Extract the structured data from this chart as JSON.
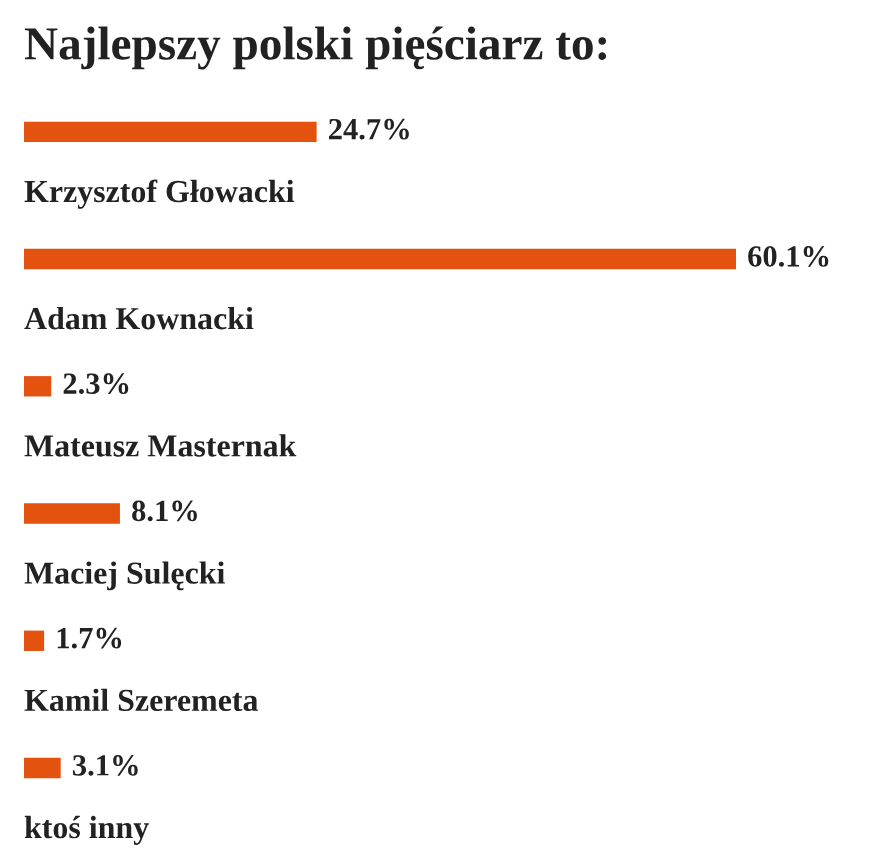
{
  "chart_data": {
    "type": "bar",
    "orientation": "horizontal",
    "title": "Najlepszy polski pięściarz to:",
    "categories": [
      "Krzysztof Głowacki",
      "Adam Kownacki",
      "Mateusz Masternak",
      "Maciej Sulęcki",
      "Kamil Szeremeta",
      "ktoś inny"
    ],
    "values": [
      24.7,
      60.1,
      2.3,
      8.1,
      1.7,
      3.1
    ],
    "value_labels": [
      "24.7%",
      "60.1%",
      "2.3%",
      "8.1%",
      "1.7%",
      "3.1%"
    ],
    "color": "#e4520f"
  }
}
